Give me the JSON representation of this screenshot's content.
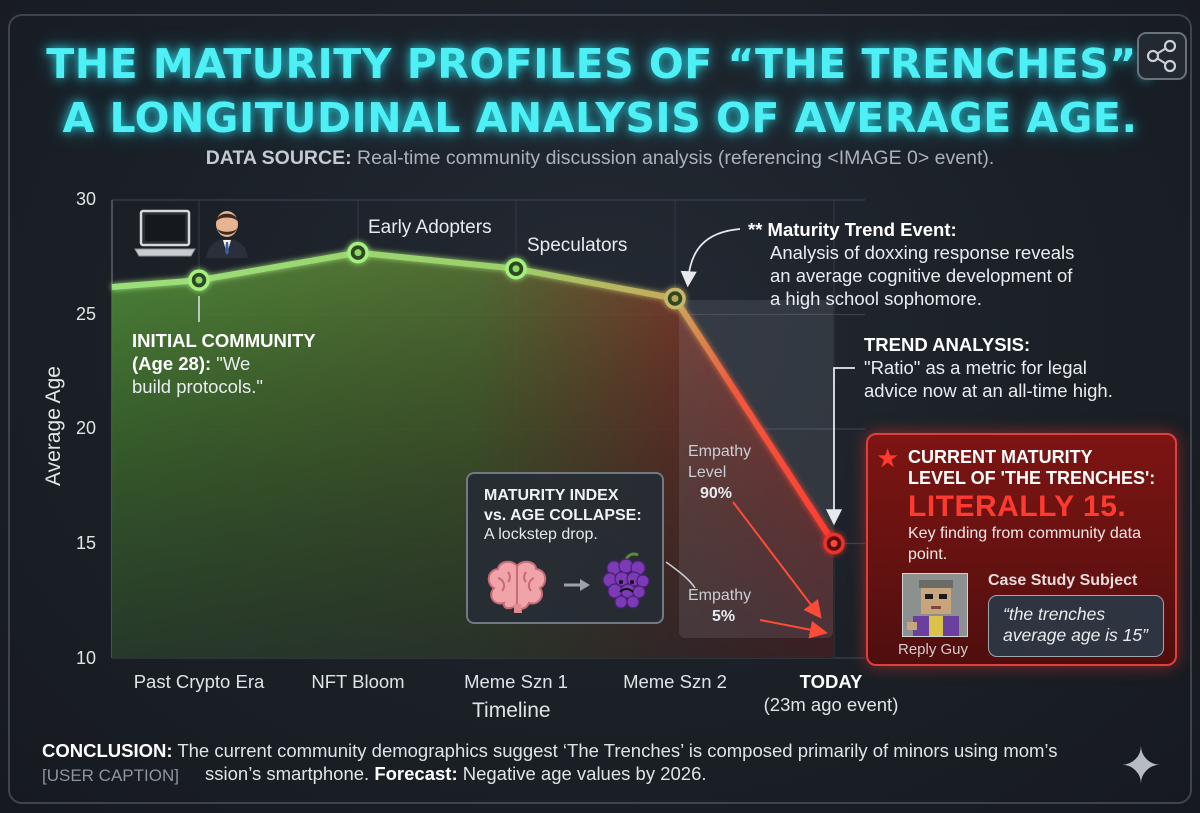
{
  "header": {
    "title_line1": "THE MATURITY PROFILES OF “THE TRENCHES”:",
    "title_line2": "A LONGITUDINAL ANALYSIS OF AVERAGE AGE.",
    "source_label": "DATA SOURCE:",
    "source_text": " Real-time community discussion analysis (referencing <IMAGE 0> event).",
    "share_icon": "share-icon"
  },
  "chart_data": {
    "type": "area",
    "title": "",
    "xlabel": "Timeline",
    "ylabel": "Average Age",
    "ylim": [
      10,
      30
    ],
    "yticks": [
      "30",
      "25",
      "20",
      "15",
      "10"
    ],
    "categories": [
      "Past Crypto Era",
      "NFT Bloom",
      "Meme Szn 1",
      "Meme Szn 2",
      "TODAY"
    ],
    "category_sub": "(23m ago event)",
    "series": [
      {
        "name": "",
        "x": [
          -0.55,
          0,
          1,
          2,
          3,
          4
        ],
        "values": [
          26.2,
          26.5,
          27.7,
          27.0,
          25.7,
          15.0
        ]
      }
    ],
    "point_labels": [
      "",
      "",
      "Early Adopters",
      "Speculators",
      "",
      ""
    ],
    "colors": {
      "line_start": "#9be07a",
      "line_mid": "#8fce6a",
      "line_end": "#ff3b30",
      "marker_today": "#e8302a"
    },
    "grid": true,
    "annotations": {
      "initial_title": "INITIAL COMMUNITY",
      "initial_age": "(Age 28):",
      "initial_line1": " \"We",
      "initial_line2": "build protocols.\"",
      "event_title": "** Maturity Trend Event:",
      "event_line1": "Analysis of doxxing response reveals",
      "event_line2": "an average cognitive development of",
      "event_line3": "a high school sophomore.",
      "trend_title": "TREND ANALYSIS:",
      "trend_line1": "\"Ratio\" as a metric for legal",
      "trend_line2": "advice now at an all-time high.",
      "maturity_index_line1": "MATURITY INDEX",
      "maturity_index_line2": "vs. AGE COLLAPSE:",
      "maturity_index_sub": "A lockstep drop.",
      "empathy_high_line1": "Empathy",
      "empathy_high_line2": "Level",
      "empathy_high_value": "90%",
      "empathy_low_line1": "Empathy",
      "empathy_low_value": "5%",
      "current_title_line1": "CURRENT MATURITY",
      "current_title_line2": "LEVEL OF 'THE TRENCHES':",
      "current_value": "LITERALLY 15.",
      "current_sub_line1": "Key finding from community data",
      "current_sub_line2": "point.",
      "case_study_label": "Case Study Subject",
      "quote_line1": "“the trenches",
      "quote_line2": "average age is 15”",
      "reply_guy": "Reply Guy"
    }
  },
  "footer": {
    "conclusion_label": "CONCLUSION:",
    "conclusion_text": " The current community demographics suggest ‘The Trenches’ is composed primarily of minors using mom’s",
    "user_caption": "[USER CAPTION]",
    "line2_text": "ssion’s smartphone. ",
    "forecast_label": "Forecast:",
    "forecast_text": " Negative age values by 2026.",
    "sparkle_icon": "sparkle-icon"
  },
  "icons": {
    "laptop": "laptop-icon",
    "person": "businessman-icon",
    "brain": "brain-icon",
    "grapes": "grapes-icon",
    "star": "star-icon",
    "arrow": "right-arrow-icon"
  }
}
